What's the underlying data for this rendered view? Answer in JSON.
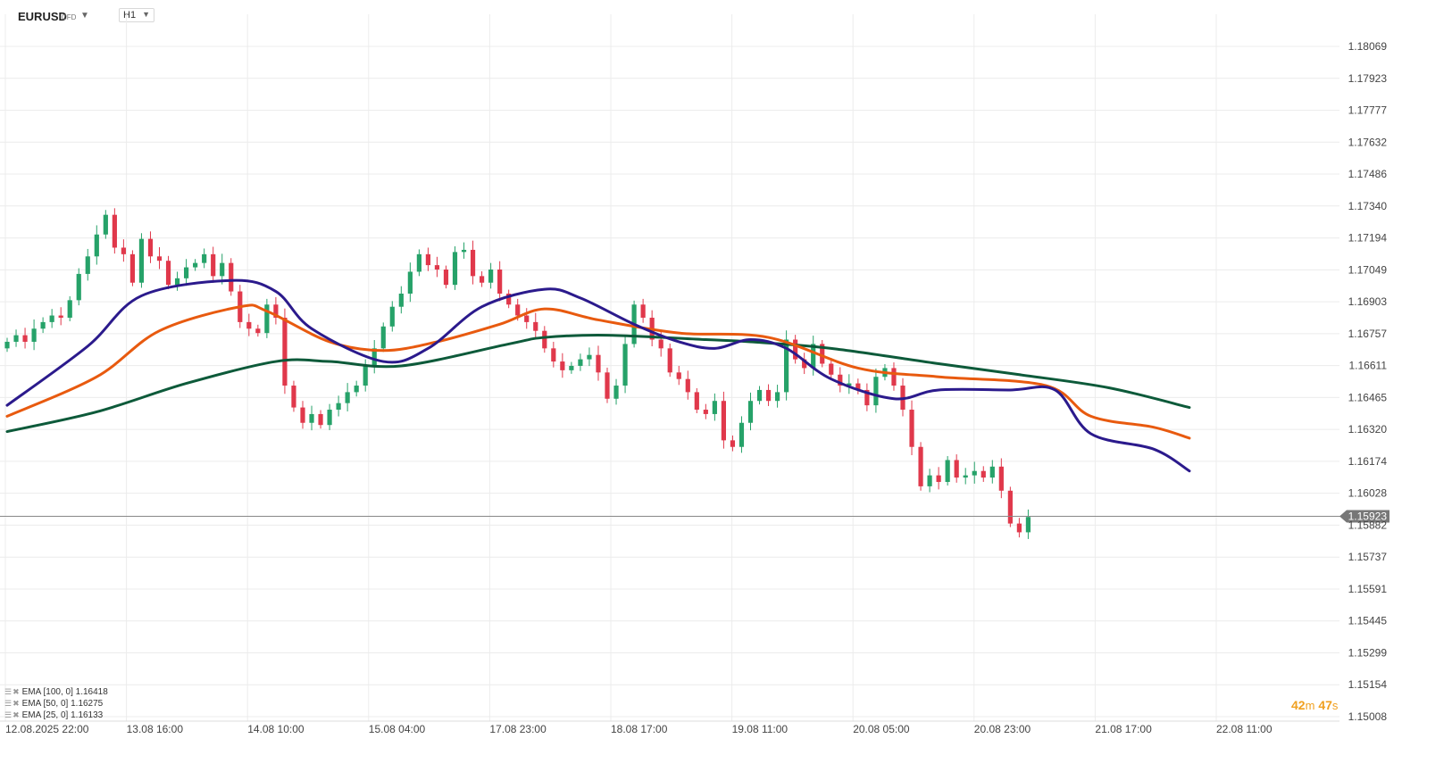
{
  "header": {
    "symbol": "EURUSD",
    "symbol_type": "CFD",
    "timeframe": "H1"
  },
  "colors": {
    "bull": "#26a269",
    "bear": "#e0384b",
    "ema100": "#0d5a3a",
    "ema50": "#e85a0f",
    "ema25": "#2b1a8c",
    "grid": "#ececec",
    "price_line": "#888888",
    "price_tag": "#777777",
    "countdown": "#f0a020"
  },
  "countdown": {
    "minutes": "42",
    "minutes_unit": "m",
    "seconds": "47",
    "seconds_unit": "s"
  },
  "legend": [
    {
      "label": "EMA [100, 0] 1.16418"
    },
    {
      "label": "EMA [50, 0] 1.16275"
    },
    {
      "label": "EMA [25, 0] 1.16133"
    }
  ],
  "chart_data": {
    "type": "candlestick",
    "y_ticks": [
      "1.18069",
      "1.17923",
      "1.17777",
      "1.17632",
      "1.17486",
      "1.17340",
      "1.17194",
      "1.17049",
      "1.16903",
      "1.16757",
      "1.16611",
      "1.16465",
      "1.16320",
      "1.16174",
      "1.16028",
      "1.15882",
      "1.15737",
      "1.15591",
      "1.15445",
      "1.15299",
      "1.15154",
      "1.15008"
    ],
    "x_ticks": [
      "12.08.2025  22:00",
      "13.08  16:00",
      "14.08  10:00",
      "15.08  04:00",
      "17.08  23:00",
      "18.08  17:00",
      "19.08  11:00",
      "20.08  05:00",
      "20.08  23:00",
      "21.08  17:00",
      "22.08  11:00"
    ],
    "current_price": "1.15923",
    "ylim": [
      1.15008,
      1.18069
    ],
    "close_path": [
      1.1672,
      1.1675,
      1.1672,
      1.1678,
      1.1681,
      1.1684,
      1.1683,
      1.1691,
      1.1703,
      1.1711,
      1.1721,
      1.173,
      1.1715,
      1.1712,
      1.1699,
      1.1719,
      1.1711,
      1.1709,
      1.1698,
      1.1701,
      1.1706,
      1.1708,
      1.1712,
      1.1702,
      1.1708,
      1.1695,
      1.1681,
      1.1678,
      1.1676,
      1.1689,
      1.1683,
      1.1652,
      1.1642,
      1.1635,
      1.1639,
      1.1634,
      1.1641,
      1.1644,
      1.1649,
      1.1652,
      1.1661,
      1.1669,
      1.1679,
      1.1688,
      1.1694,
      1.1704,
      1.1712,
      1.1707,
      1.1705,
      1.1698,
      1.1713,
      1.1714,
      1.1702,
      1.1699,
      1.1705,
      1.1694,
      1.1689,
      1.1684,
      1.1681,
      1.1677,
      1.1669,
      1.1663,
      1.1659,
      1.1661,
      1.1664,
      1.1666,
      1.1658,
      1.1646,
      1.1652,
      1.1671,
      1.1689,
      1.1683,
      1.1673,
      1.1669,
      1.1658,
      1.1655,
      1.1649,
      1.1641,
      1.1639,
      1.1645,
      1.1627,
      1.1624,
      1.1635,
      1.1645,
      1.165,
      1.1645,
      1.1649,
      1.1673,
      1.1664,
      1.166,
      1.1671,
      1.1662,
      1.1657,
      1.1652,
      1.1653,
      1.165,
      1.1643,
      1.1656,
      1.166,
      1.1652,
      1.1641,
      1.1624,
      1.1606,
      1.1611,
      1.1608,
      1.1618,
      1.161,
      1.1611,
      1.1613,
      1.161,
      1.1615,
      1.1604,
      1.1589,
      1.1585,
      1.1592
    ],
    "series": [
      {
        "name": "EMA [100, 0]",
        "last": 1.16418,
        "points": [
          [
            0,
            1.1631
          ],
          [
            10,
            1.164
          ],
          [
            20,
            1.1653
          ],
          [
            30,
            1.1663
          ],
          [
            36,
            1.1663
          ],
          [
            44,
            1.1661
          ],
          [
            56,
            1.1671
          ],
          [
            60,
            1.1674
          ],
          [
            67,
            1.1675
          ],
          [
            78,
            1.1673
          ],
          [
            83,
            1.1672
          ],
          [
            92,
            1.1669
          ],
          [
            104,
            1.1662
          ],
          [
            113,
            1.1657
          ],
          [
            123,
            1.1651
          ],
          [
            132,
            1.1642
          ]
        ]
      },
      {
        "name": "EMA [50, 0]",
        "last": 1.16275,
        "points": [
          [
            0,
            1.1638
          ],
          [
            10,
            1.1656
          ],
          [
            17,
            1.1677
          ],
          [
            26,
            1.1688
          ],
          [
            29,
            1.1686
          ],
          [
            36,
            1.1672
          ],
          [
            42,
            1.1668
          ],
          [
            48,
            1.1672
          ],
          [
            55,
            1.168
          ],
          [
            60,
            1.1687
          ],
          [
            66,
            1.1682
          ],
          [
            75,
            1.1676
          ],
          [
            85,
            1.1674
          ],
          [
            95,
            1.166
          ],
          [
            104,
            1.1656
          ],
          [
            116,
            1.1652
          ],
          [
            121,
            1.1638
          ],
          [
            128,
            1.1633
          ],
          [
            132,
            1.1628
          ]
        ]
      },
      {
        "name": "EMA [25, 0]",
        "last": 1.16133,
        "points": [
          [
            0,
            1.1643
          ],
          [
            9,
            1.167
          ],
          [
            15,
            1.1693
          ],
          [
            25,
            1.17
          ],
          [
            30,
            1.1695
          ],
          [
            34,
            1.1678
          ],
          [
            42,
            1.1663
          ],
          [
            47,
            1.1669
          ],
          [
            53,
            1.1688
          ],
          [
            60,
            1.1696
          ],
          [
            64,
            1.1692
          ],
          [
            70,
            1.168
          ],
          [
            75,
            1.1672
          ],
          [
            79,
            1.1669
          ],
          [
            83,
            1.1673
          ],
          [
            87,
            1.1669
          ],
          [
            92,
            1.1655
          ],
          [
            99,
            1.1646
          ],
          [
            104,
            1.165
          ],
          [
            112,
            1.165
          ],
          [
            117,
            1.165
          ],
          [
            121,
            1.163
          ],
          [
            128,
            1.1623
          ],
          [
            132,
            1.1613
          ]
        ]
      }
    ]
  }
}
